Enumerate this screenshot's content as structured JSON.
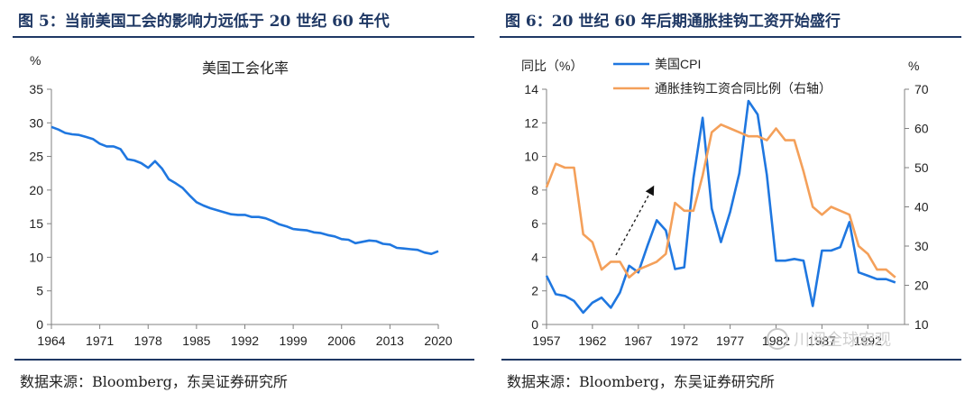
{
  "left": {
    "header": "图 5：当前美国工会的影响力远低于 20 世纪 60 年代",
    "source": "数据来源：Bloomberg，东吴证券研究所",
    "chart_data": {
      "type": "line",
      "title": "美国工会化率",
      "ylabel": "%",
      "xlabel": "",
      "xlim": [
        1964,
        2020
      ],
      "ylim": [
        0,
        35
      ],
      "x_ticks": [
        1964,
        1971,
        1978,
        1985,
        1992,
        1999,
        2006,
        2013,
        2020
      ],
      "y_ticks": [
        0,
        5,
        10,
        15,
        20,
        25,
        30,
        35
      ],
      "grid": false,
      "series": [
        {
          "name": "",
          "color": "#1f77e0",
          "x": [
            1964,
            1965,
            1966,
            1967,
            1968,
            1969,
            1970,
            1971,
            1972,
            1973,
            1974,
            1975,
            1976,
            1977,
            1978,
            1979,
            1980,
            1981,
            1982,
            1983,
            1984,
            1985,
            1986,
            1987,
            1988,
            1989,
            1990,
            1991,
            1992,
            1993,
            1994,
            1995,
            1996,
            1997,
            1998,
            1999,
            2000,
            2001,
            2002,
            2003,
            2004,
            2005,
            2006,
            2007,
            2008,
            2009,
            2010,
            2011,
            2012,
            2013,
            2014,
            2015,
            2016,
            2017,
            2018,
            2019,
            2020
          ],
          "y": [
            29.4,
            29.0,
            28.5,
            28.3,
            28.2,
            27.9,
            27.6,
            26.9,
            26.5,
            26.5,
            26.1,
            24.6,
            24.4,
            24.0,
            23.3,
            24.3,
            23.2,
            21.6,
            21.0,
            20.3,
            19.2,
            18.2,
            17.7,
            17.3,
            17.0,
            16.7,
            16.4,
            16.3,
            16.3,
            16.0,
            16.0,
            15.8,
            15.4,
            14.9,
            14.6,
            14.2,
            14.1,
            14.0,
            13.7,
            13.6,
            13.3,
            13.1,
            12.7,
            12.6,
            12.1,
            12.3,
            12.5,
            12.4,
            12.0,
            11.9,
            11.4,
            11.3,
            11.2,
            11.1,
            10.7,
            10.5,
            10.9
          ]
        }
      ]
    }
  },
  "right": {
    "header": "图 6：20 世纪 60 年后期通胀挂钩工资开始盛行",
    "source": "数据来源：Bloomberg，东吴证券研究所",
    "watermark": "川阅全球宏观",
    "chart_data": {
      "type": "line",
      "title": "",
      "ylabel_left": "同比（%）",
      "ylabel_right": "%",
      "xlim": [
        1957,
        1996
      ],
      "ylim_left": [
        0,
        14
      ],
      "ylim_right": [
        10,
        70
      ],
      "x_ticks": [
        1957,
        1962,
        1967,
        1972,
        1977,
        1982,
        1987,
        1992
      ],
      "y_ticks_left": [
        0,
        2,
        4,
        6,
        8,
        10,
        12,
        14
      ],
      "y_ticks_right": [
        10,
        20,
        30,
        40,
        50,
        60,
        70
      ],
      "grid": false,
      "legend": "top-center",
      "series": [
        {
          "name": "美国CPI",
          "axis": "left",
          "color": "#1f77e0",
          "x": [
            1957,
            1958,
            1959,
            1960,
            1961,
            1962,
            1963,
            1964,
            1965,
            1966,
            1967,
            1968,
            1969,
            1970,
            1971,
            1972,
            1973,
            1974,
            1975,
            1976,
            1977,
            1978,
            1979,
            1980,
            1981,
            1982,
            1983,
            1984,
            1985,
            1986,
            1987,
            1988,
            1989,
            1990,
            1991,
            1992,
            1993,
            1994,
            1995
          ],
          "y": [
            2.9,
            1.8,
            1.7,
            1.4,
            0.7,
            1.3,
            1.6,
            1.0,
            1.9,
            3.5,
            3.1,
            4.7,
            6.2,
            5.6,
            3.3,
            3.4,
            8.7,
            12.3,
            6.9,
            4.9,
            6.7,
            9.0,
            13.3,
            12.5,
            8.9,
            3.8,
            3.8,
            3.9,
            3.8,
            1.1,
            4.4,
            4.4,
            4.6,
            6.1,
            3.1,
            2.9,
            2.7,
            2.7,
            2.5
          ]
        },
        {
          "name": "通胀挂钩工资合同比例（右轴）",
          "axis": "right",
          "color": "#f4a05a",
          "x": [
            1957,
            1958,
            1959,
            1960,
            1961,
            1962,
            1963,
            1964,
            1965,
            1966,
            1967,
            1968,
            1969,
            1970,
            1971,
            1972,
            1973,
            1974,
            1975,
            1976,
            1977,
            1978,
            1979,
            1980,
            1981,
            1982,
            1983,
            1984,
            1985,
            1986,
            1987,
            1988,
            1989,
            1990,
            1991,
            1992,
            1993,
            1994,
            1995
          ],
          "y": [
            45,
            51,
            50,
            50,
            33,
            31,
            24,
            26,
            26,
            22,
            24,
            25,
            26,
            28,
            41,
            39,
            39,
            48,
            59,
            61,
            60,
            59,
            58,
            58,
            57,
            60,
            57,
            57,
            49,
            40,
            38,
            40,
            39,
            38,
            30,
            28,
            24,
            24,
            22
          ]
        }
      ]
    }
  }
}
